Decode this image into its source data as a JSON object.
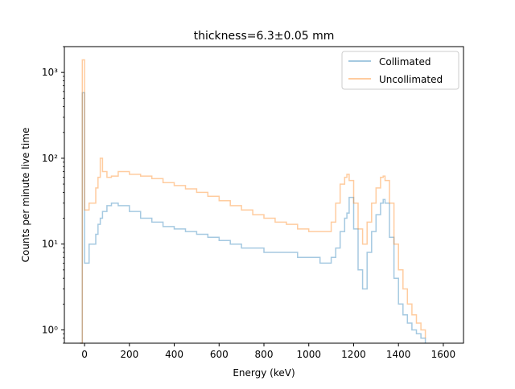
{
  "chart_data": {
    "type": "line",
    "title": "thickness=6.3±0.05 mm",
    "xlabel": "Energy (keV)",
    "ylabel": "Counts per minute live time",
    "xlim": [
      -90,
      1690
    ],
    "ylim": [
      0.7,
      2000
    ],
    "yscale": "log",
    "legend_position": "top-right",
    "x_ticks": [
      0,
      200,
      400,
      600,
      800,
      1000,
      1200,
      1400,
      1600
    ],
    "x_tick_labels": [
      "0",
      "200",
      "400",
      "600",
      "800",
      "1000",
      "1200",
      "1400",
      "1600"
    ],
    "y_ticks": [
      1,
      10,
      100,
      1000
    ],
    "y_tick_labels": [
      "10⁰",
      "10¹",
      "10²",
      "10³"
    ],
    "x": [
      -20,
      -10,
      0,
      20,
      50,
      60,
      70,
      80,
      100,
      120,
      150,
      200,
      250,
      300,
      350,
      400,
      450,
      500,
      550,
      600,
      650,
      700,
      750,
      800,
      850,
      900,
      950,
      1000,
      1050,
      1100,
      1120,
      1140,
      1160,
      1170,
      1180,
      1200,
      1220,
      1240,
      1260,
      1280,
      1300,
      1320,
      1332,
      1340,
      1360,
      1380,
      1400,
      1420,
      1440,
      1460,
      1480,
      1500,
      1520
    ],
    "series": [
      {
        "name": "Collimated",
        "color": "#1f77b4",
        "opacity": 0.4,
        "values": [
          0.7,
          580,
          6,
          10,
          13,
          17,
          20,
          24,
          28,
          30,
          28,
          24,
          20,
          18,
          16,
          15,
          14,
          13,
          12,
          11,
          10,
          9,
          9,
          8,
          8,
          8,
          7,
          7,
          6,
          7,
          9,
          14,
          20,
          23,
          35,
          15,
          5,
          3,
          8,
          14,
          22,
          30,
          33,
          30,
          12,
          4,
          2,
          1.5,
          1.2,
          1.0,
          0.9,
          0.8,
          0.7
        ]
      },
      {
        "name": "Uncollimated",
        "color": "#ff7f0e",
        "opacity": 0.4,
        "values": [
          0.7,
          1400,
          25,
          30,
          45,
          60,
          100,
          70,
          60,
          62,
          70,
          65,
          62,
          58,
          52,
          48,
          44,
          40,
          36,
          32,
          28,
          25,
          22,
          20,
          18,
          17,
          15,
          14,
          14,
          18,
          30,
          50,
          60,
          65,
          55,
          30,
          15,
          10,
          18,
          30,
          45,
          60,
          62,
          55,
          30,
          10,
          5,
          3,
          2,
          1.5,
          1.2,
          1.0,
          0.8
        ]
      }
    ]
  }
}
